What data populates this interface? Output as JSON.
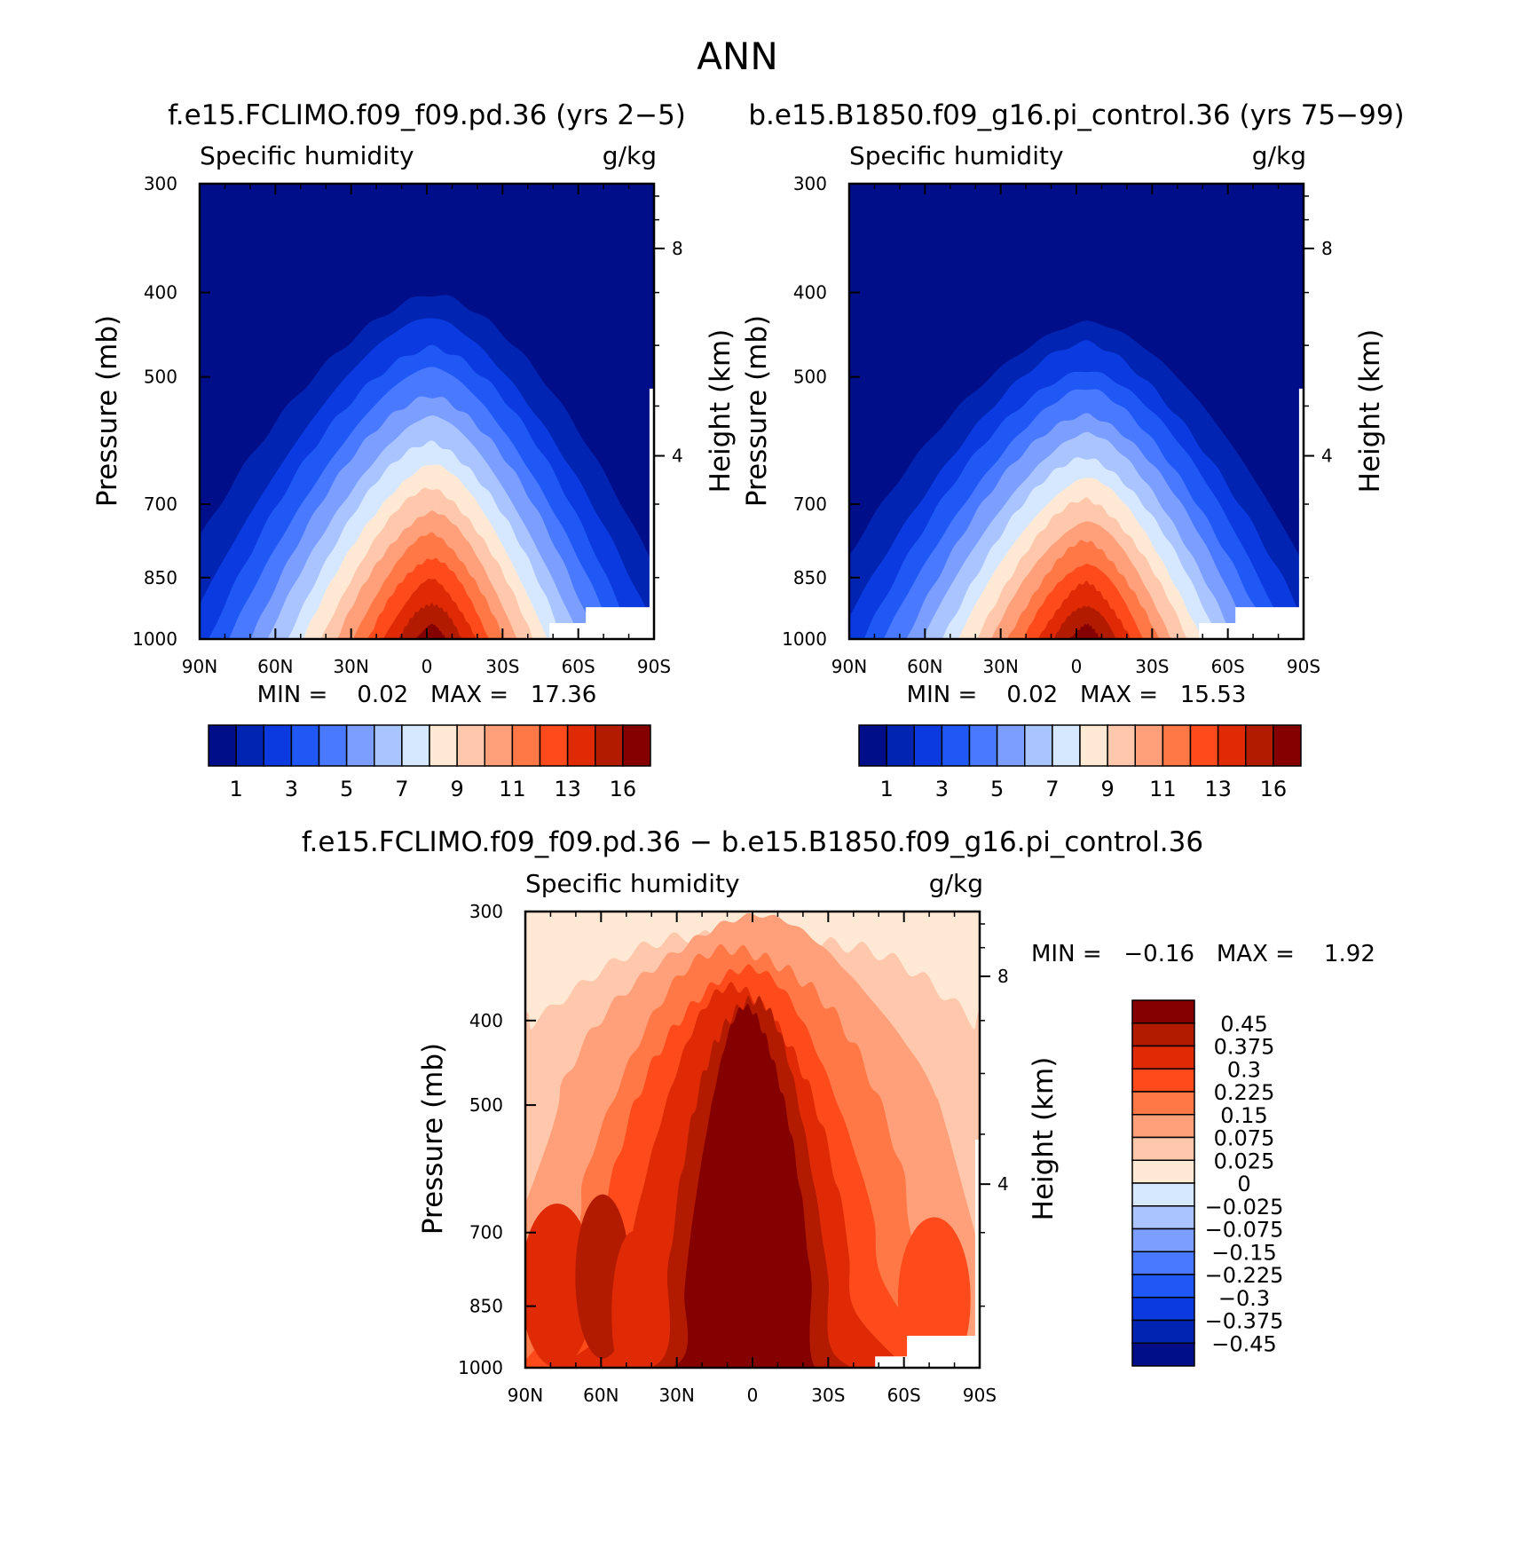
{
  "figure": {
    "title": "ANN"
  },
  "chart_data": [
    {
      "type": "heatmap",
      "kind": "contour",
      "case_title": "f.e15.FCLIMO.f09_f09.pd.36 (yrs 2−5)",
      "variable": "Specific humidity",
      "units": "g/kg",
      "ylabel": "Pressure (mb)",
      "y2label": "Height (km)",
      "x_ticks": [
        "90N",
        "60N",
        "30N",
        "0",
        "30S",
        "60S",
        "90S"
      ],
      "y_ticks": [
        "300",
        "400",
        "500",
        "700",
        "850",
        "1000"
      ],
      "y2_ticks": [
        "8",
        "4"
      ],
      "stats_text": "MIN =    0.02   MAX =   17.36",
      "min": 0.02,
      "max": 17.36,
      "peak_level_mb": 400,
      "surface_peak_latitude": -2,
      "colorbar": {
        "levels": [
          "1",
          "",
          "3",
          "",
          "5",
          "",
          "7",
          "",
          "9",
          "",
          "11",
          "",
          "13",
          "",
          "16"
        ],
        "colors": [
          "#000e8a",
          "#0125b2",
          "#0a3ae0",
          "#1f58f5",
          "#4979ff",
          "#7b9eff",
          "#aac4ff",
          "#d6e8ff",
          "#ffe9d4",
          "#ffc8ac",
          "#ffa07a",
          "#ff7845",
          "#ff4b1c",
          "#e02a05",
          "#b21b00",
          "#850000"
        ]
      }
    },
    {
      "type": "heatmap",
      "kind": "contour",
      "case_title": "b.e15.B1850.f09_g16.pi_control.36 (yrs 75−99)",
      "variable": "Specific humidity",
      "units": "g/kg",
      "ylabel": "Pressure (mb)",
      "y2label": "Height (km)",
      "x_ticks": [
        "90N",
        "60N",
        "30N",
        "0",
        "30S",
        "60S",
        "90S"
      ],
      "y_ticks": [
        "300",
        "400",
        "500",
        "700",
        "850",
        "1000"
      ],
      "y2_ticks": [
        "8",
        "4"
      ],
      "stats_text": "MIN =    0.02   MAX =   15.53",
      "min": 0.02,
      "max": 15.53,
      "peak_level_mb": 430,
      "surface_peak_latitude": -4,
      "colorbar": {
        "levels": [
          "1",
          "",
          "3",
          "",
          "5",
          "",
          "7",
          "",
          "9",
          "",
          "11",
          "",
          "13",
          "",
          "16"
        ],
        "colors": [
          "#000e8a",
          "#0125b2",
          "#0a3ae0",
          "#1f58f5",
          "#4979ff",
          "#7b9eff",
          "#aac4ff",
          "#d6e8ff",
          "#ffe9d4",
          "#ffc8ac",
          "#ffa07a",
          "#ff7845",
          "#ff4b1c",
          "#e02a05",
          "#b21b00",
          "#850000"
        ]
      }
    },
    {
      "type": "heatmap",
      "kind": "contour-difference",
      "case_title": "f.e15.FCLIMO.f09_f09.pd.36 − b.e15.B1850.f09_g16.pi_control.36",
      "variable": "Specific humidity",
      "units": "g/kg",
      "ylabel": "Pressure (mb)",
      "y2label": "Height (km)",
      "x_ticks": [
        "90N",
        "60N",
        "30N",
        "0",
        "30S",
        "60S",
        "90S"
      ],
      "y_ticks": [
        "300",
        "400",
        "500",
        "700",
        "850",
        "1000"
      ],
      "y2_ticks": [
        "8",
        "4"
      ],
      "stats_text": "MIN =   −0.16   MAX =    1.92",
      "min": -0.16,
      "max": 1.92,
      "colorbar": {
        "levels": [
          "0.45",
          "0.375",
          "0.3",
          "0.225",
          "0.15",
          "0.075",
          "0.025",
          "0",
          "−0.025",
          "−0.075",
          "−0.15",
          "−0.225",
          "−0.3",
          "−0.375",
          "−0.45"
        ],
        "colors": [
          "#850000",
          "#b21b00",
          "#e02a05",
          "#ff4b1c",
          "#ff7845",
          "#ffa07a",
          "#ffc8ac",
          "#ffe9d4",
          "#d6e8ff",
          "#aac4ff",
          "#7b9eff",
          "#4979ff",
          "#1f58f5",
          "#0a3ae0",
          "#0125b2",
          "#000e8a"
        ]
      }
    }
  ]
}
